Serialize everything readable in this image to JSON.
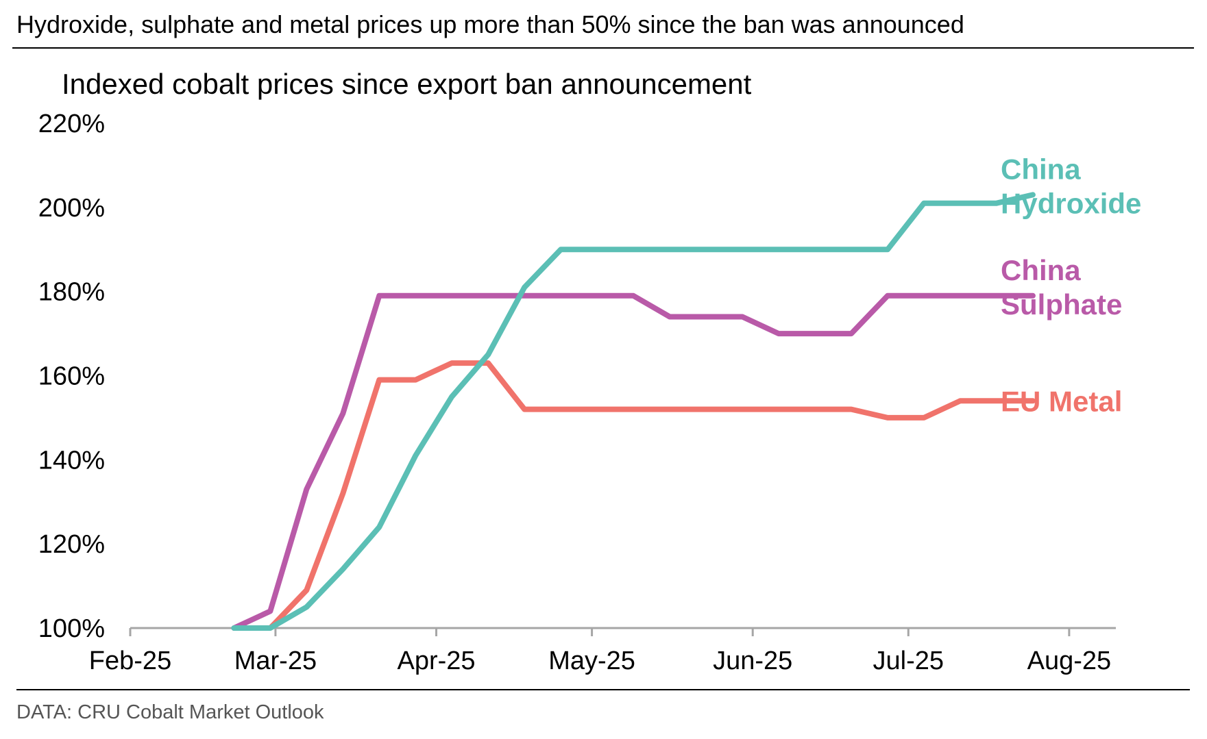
{
  "headline": "Hydroxide, sulphate and metal prices up more than 50% since the ban was announced",
  "source": "DATA: CRU Cobalt Market Outlook",
  "chart_data": {
    "type": "line",
    "title": "Indexed cobalt prices since export ban announcement",
    "xlabel": "",
    "ylabel": "",
    "ylim": [
      100,
      220
    ],
    "y_ticks": [
      100,
      120,
      140,
      160,
      180,
      200,
      220
    ],
    "y_tick_labels": [
      "100%",
      "120%",
      "140%",
      "160%",
      "180%",
      "200%",
      "220%"
    ],
    "x_range_days": [
      0,
      190
    ],
    "x_ticks": [
      {
        "label": "Feb-25",
        "day": 0
      },
      {
        "label": "Mar-25",
        "day": 28
      },
      {
        "label": "Apr-25",
        "day": 59
      },
      {
        "label": "May-25",
        "day": 89
      },
      {
        "label": "Jun-25",
        "day": 120
      },
      {
        "label": "Jul-25",
        "day": 150
      },
      {
        "label": "Aug-25",
        "day": 181
      }
    ],
    "x_note": "x values are days since 1 Feb 2025 (weekly observations)",
    "grid": false,
    "legend": "inline labels at right end of each series",
    "series": [
      {
        "name": "China Hydroxide",
        "label_lines": [
          "China",
          "Hydroxide"
        ],
        "color": "#5bbfb5",
        "x": [
          20,
          27,
          34,
          41,
          48,
          55,
          62,
          69,
          76,
          83,
          90,
          97,
          104,
          111,
          118,
          125,
          132,
          139,
          146,
          153,
          160,
          167,
          174
        ],
        "y": [
          100,
          100,
          105,
          114,
          124,
          141,
          155,
          165,
          181,
          190,
          190,
          190,
          190,
          190,
          190,
          190,
          190,
          190,
          190,
          201,
          201,
          201,
          203
        ]
      },
      {
        "name": "China Sulphate",
        "label_lines": [
          "China",
          "Sulphate"
        ],
        "color": "#b95aa8",
        "x": [
          20,
          27,
          34,
          41,
          48,
          55,
          62,
          69,
          76,
          83,
          90,
          97,
          104,
          111,
          118,
          125,
          132,
          139,
          146,
          153,
          160,
          167,
          174
        ],
        "y": [
          100,
          104,
          133,
          151,
          179,
          179,
          179,
          179,
          179,
          179,
          179,
          179,
          174,
          174,
          174,
          170,
          170,
          170,
          179,
          179,
          179,
          179,
          179
        ]
      },
      {
        "name": "EU Metal",
        "label_lines": [
          "EU Metal"
        ],
        "color": "#f0736b",
        "x": [
          27,
          34,
          41,
          48,
          55,
          62,
          69,
          76,
          83,
          90,
          97,
          104,
          111,
          118,
          125,
          132,
          139,
          146,
          153,
          160,
          167,
          174
        ],
        "y": [
          100,
          109,
          132,
          159,
          159,
          163,
          163,
          152,
          152,
          152,
          152,
          152,
          152,
          152,
          152,
          152,
          152,
          150,
          150,
          154,
          154,
          154
        ]
      }
    ]
  }
}
